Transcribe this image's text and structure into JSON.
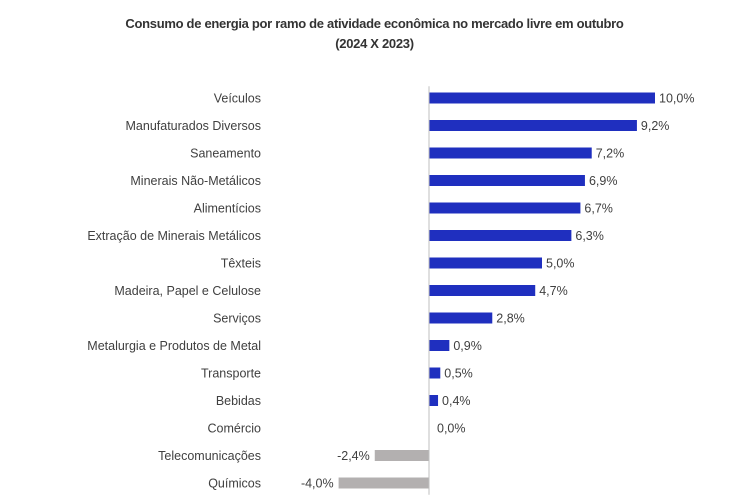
{
  "chart_data": {
    "type": "bar",
    "orientation": "horizontal",
    "title_line1": "Consumo de energia por ramo de atividade econômica no mercado livre em outubro",
    "title_line2": "(2024 X 2023)",
    "xlabel": "",
    "ylabel": "",
    "xlim": [
      -4.0,
      10.0
    ],
    "grid": false,
    "legend": "none",
    "categories": [
      "Veículos",
      "Manufaturados Diversos",
      "Saneamento",
      "Minerais Não-Metálicos",
      "Alimentícios",
      "Extração de Minerais Metálicos",
      "Têxteis",
      "Madeira, Papel e Celulose",
      "Serviços",
      "Metalurgia e Produtos de Metal",
      "Transporte",
      "Bebidas",
      "Comércio",
      "Telecomunicações",
      "Químicos"
    ],
    "values": [
      10.0,
      9.2,
      7.2,
      6.9,
      6.7,
      6.3,
      5.0,
      4.7,
      2.8,
      0.9,
      0.5,
      0.4,
      0.0,
      -2.4,
      -4.0
    ],
    "value_labels": [
      "10,0%",
      "9,2%",
      "7,2%",
      "6,9%",
      "6,7%",
      "6,3%",
      "5,0%",
      "4,7%",
      "2,8%",
      "0,9%",
      "0,5%",
      "0,4%",
      "0,0%",
      "-2,4%",
      "-4,0%"
    ],
    "colors": {
      "positive": "#1f2fbf",
      "negative": "#b3b0b0",
      "axis": "#bfbfbf"
    }
  }
}
